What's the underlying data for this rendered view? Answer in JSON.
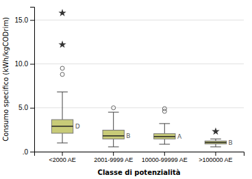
{
  "chart_data": {
    "type": "box",
    "xlabel": "Classe di potenzialità",
    "ylabel": "Consumo specifico (kWh/kgCODrim)",
    "categories": [
      "<2000 AE",
      "2001-9999 AE",
      "10000-99999 AE",
      ">100000 AE"
    ],
    "boxes": [
      {
        "whislo": 1.0,
        "q1": 2.1,
        "med": 2.9,
        "q3": 3.65,
        "whishi": 6.8,
        "outliers": [
          9.5,
          8.8
        ],
        "extremes": [
          15.8,
          12.2
        ],
        "label": "D"
      },
      {
        "whislo": 0.55,
        "q1": 1.45,
        "med": 1.8,
        "q3": 2.45,
        "whishi": 4.5,
        "outliers": [
          5.0
        ],
        "extremes": [],
        "label": "B"
      },
      {
        "whislo": 0.85,
        "q1": 1.45,
        "med": 1.72,
        "q3": 2.05,
        "whishi": 3.2,
        "outliers": [
          4.9,
          4.6
        ],
        "extremes": [],
        "label": "A"
      },
      {
        "whislo": 0.55,
        "q1": 0.88,
        "med": 1.05,
        "q3": 1.22,
        "whishi": 1.45,
        "outliers": [],
        "extremes": [
          2.3
        ],
        "label": "B"
      }
    ],
    "color": "#c8cb78",
    "ylim": [
      0,
      16.5
    ],
    "yticks": [
      {
        "value": 0,
        "label": ".0"
      },
      {
        "value": 5.0,
        "label": "5.0"
      },
      {
        "value": 10.0,
        "label": "10.0"
      },
      {
        "value": 15.0,
        "label": "15.0"
      }
    ],
    "grid": true
  }
}
